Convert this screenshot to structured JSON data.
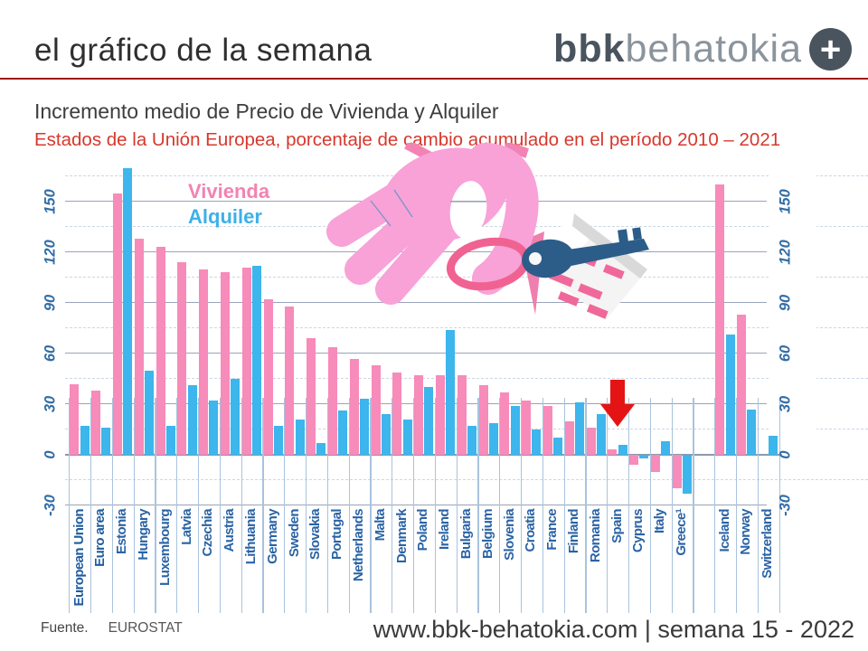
{
  "header": {
    "title": "el gráfico de la semana",
    "logo": {
      "bold": "bbk",
      "light": "behatokia",
      "plus": "+"
    }
  },
  "subtitle": {
    "line1": "Incremento medio de Precio de Vivienda y Alquiler",
    "line2": "Estados de la Unión Europea, porcentaje de cambio acumulado en el período 2010 – 2021"
  },
  "legend": {
    "vivienda": "Vivienda",
    "alquiler": "Alquiler"
  },
  "footer": {
    "source_label": "Fuente.",
    "source_value": "EUROSTAT",
    "right_text": "www.bbk-behatokia.com | semana 15 - 2022"
  },
  "chart_data": {
    "type": "bar",
    "title": "Incremento medio de Precio de Vivienda y Alquiler",
    "subtitle": "Estados de la Unión Europea, porcentaje de cambio acumulado en el período 2010 – 2021",
    "ylim": [
      -30,
      172
    ],
    "yticks_solid": [
      150,
      120,
      90,
      60,
      30,
      0,
      -30
    ],
    "yticks_dashed": [
      165,
      135,
      105,
      75,
      45,
      15,
      -15
    ],
    "grid": "on",
    "legend_position": "top-left-inside",
    "series_names": [
      "Vivienda",
      "Alquiler"
    ],
    "colors": {
      "vivienda": "#F78BBA",
      "alquiler": "#3DB5ED",
      "highlight_arrow": "#E51414"
    },
    "countries": [
      {
        "name": "European Union",
        "vivienda": 42,
        "alquiler": 17,
        "bold": true
      },
      {
        "name": "Euro area",
        "vivienda": 38,
        "alquiler": 16,
        "bold": true
      },
      {
        "name": "Estonia",
        "vivienda": 155,
        "alquiler": 170
      },
      {
        "name": "Hungary",
        "vivienda": 128,
        "alquiler": 50
      },
      {
        "name": "Luxembourg",
        "vivienda": 123,
        "alquiler": 17
      },
      {
        "name": "Latvia",
        "vivienda": 114,
        "alquiler": 41
      },
      {
        "name": "Czechia",
        "vivienda": 110,
        "alquiler": 32
      },
      {
        "name": "Austria",
        "vivienda": 108,
        "alquiler": 45
      },
      {
        "name": "Lithuania",
        "vivienda": 111,
        "alquiler": 112
      },
      {
        "name": "Germany",
        "vivienda": 92,
        "alquiler": 17
      },
      {
        "name": "Sweden",
        "vivienda": 88,
        "alquiler": 21
      },
      {
        "name": "Slovakia",
        "vivienda": 69,
        "alquiler": 7
      },
      {
        "name": "Portugal",
        "vivienda": 64,
        "alquiler": 26
      },
      {
        "name": "Netherlands",
        "vivienda": 57,
        "alquiler": 33
      },
      {
        "name": "Malta",
        "vivienda": 53,
        "alquiler": 24
      },
      {
        "name": "Denmark",
        "vivienda": 49,
        "alquiler": 21
      },
      {
        "name": "Poland",
        "vivienda": 47,
        "alquiler": 40
      },
      {
        "name": "Ireland",
        "vivienda": 47,
        "alquiler": 74
      },
      {
        "name": "Bulgaria",
        "vivienda": 47,
        "alquiler": 17
      },
      {
        "name": "Belgium",
        "vivienda": 41,
        "alquiler": 19
      },
      {
        "name": "Slovenia",
        "vivienda": 37,
        "alquiler": 29
      },
      {
        "name": "Croatia",
        "vivienda": 32,
        "alquiler": 15
      },
      {
        "name": "France",
        "vivienda": 29,
        "alquiler": 10
      },
      {
        "name": "Finland",
        "vivienda": 20,
        "alquiler": 31
      },
      {
        "name": "Romania",
        "vivienda": 16,
        "alquiler": 24
      },
      {
        "name": "Spain",
        "vivienda": 3,
        "alquiler": 6,
        "highlight": true
      },
      {
        "name": "Cyprus",
        "vivienda": -6,
        "alquiler": -2
      },
      {
        "name": "Italy",
        "vivienda": -10,
        "alquiler": 8
      },
      {
        "name": "Greece¹",
        "vivienda": -20,
        "alquiler": -23
      },
      {
        "name": "Iceland",
        "vivienda": 160,
        "alquiler": 71,
        "gap_before": true
      },
      {
        "name": "Norway",
        "vivienda": 83,
        "alquiler": 27
      },
      {
        "name": "Switzerland",
        "vivienda": null,
        "alquiler": 11
      }
    ]
  }
}
